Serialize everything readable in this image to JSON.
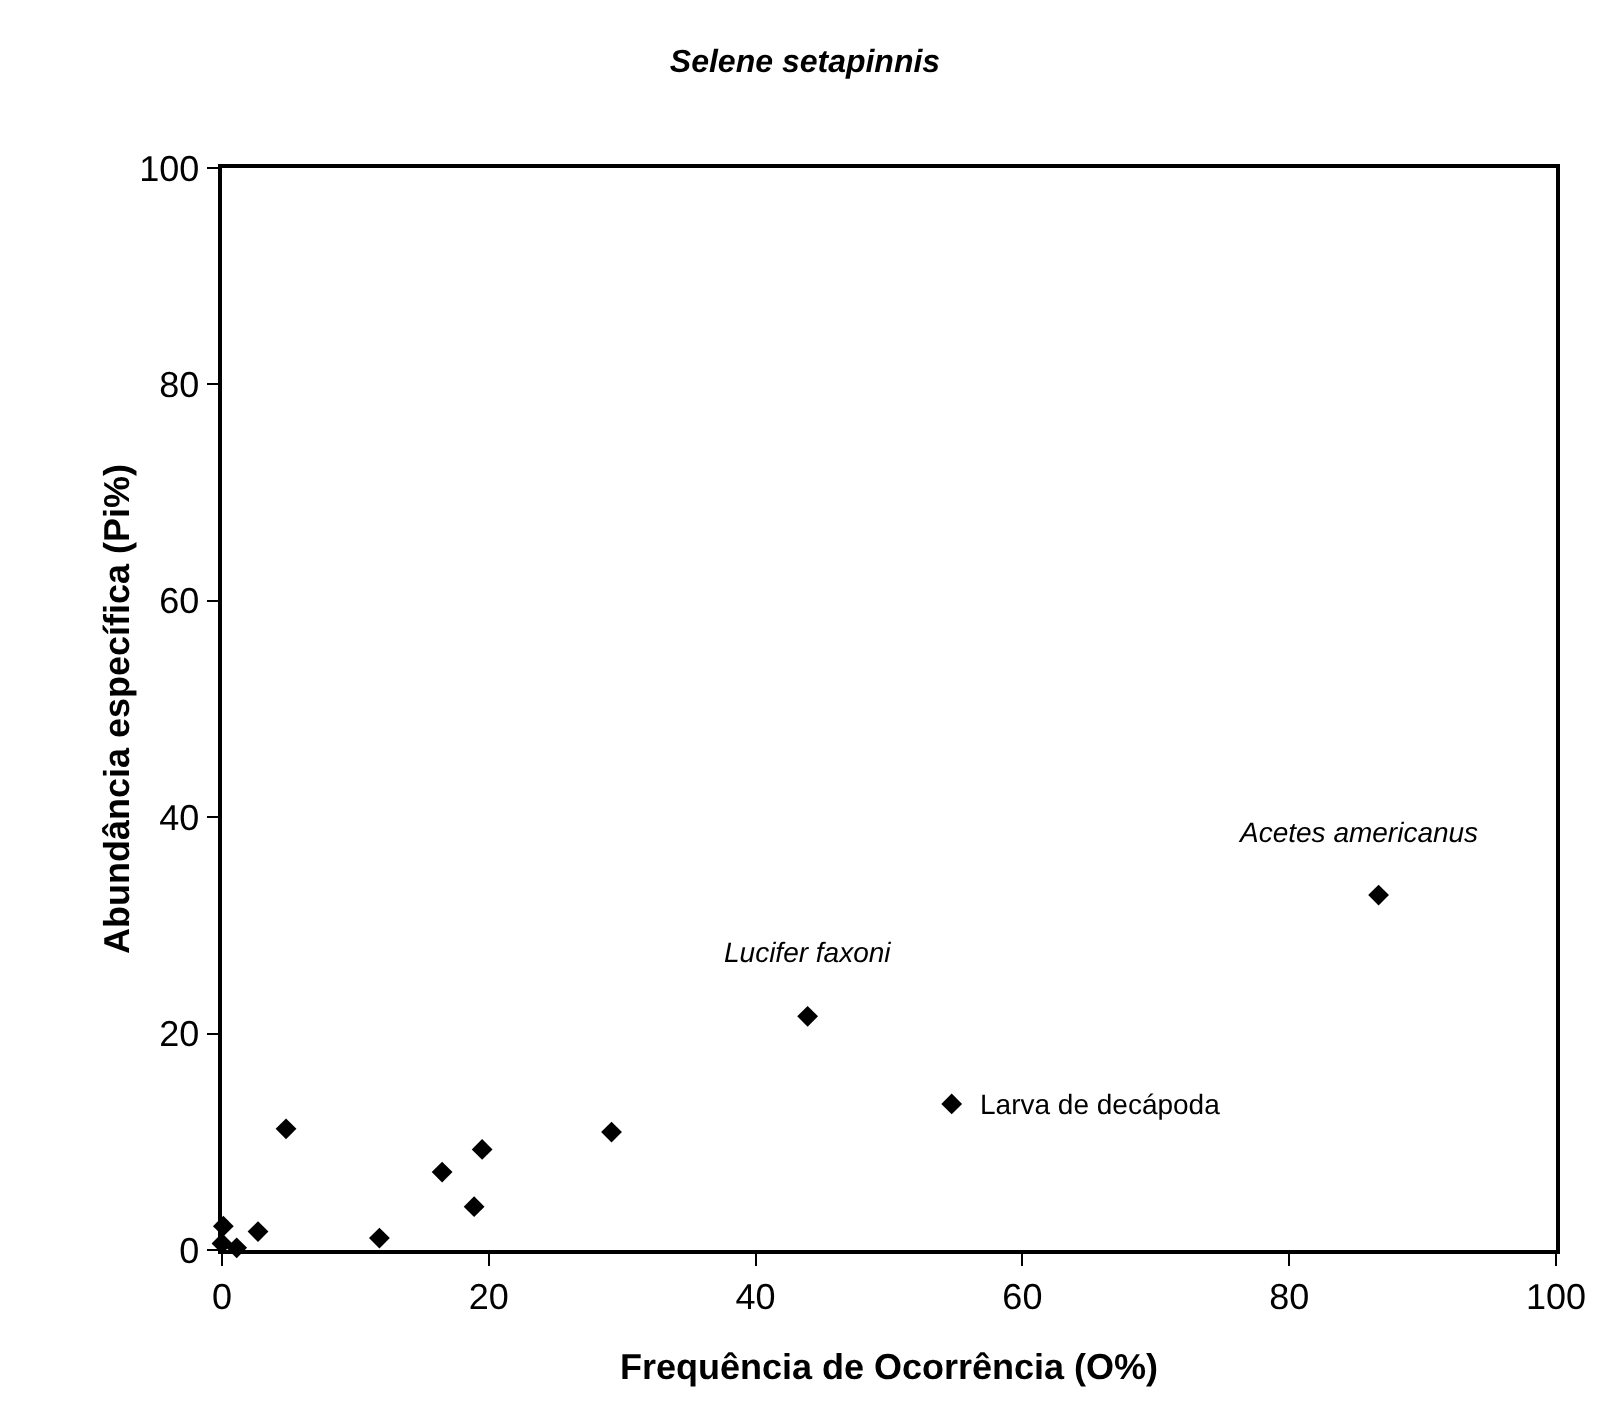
{
  "chart_data": {
    "type": "scatter",
    "title": "Selene setapinnis",
    "xlabel": "Frequência de Ocorrência (O%)",
    "ylabel": "Abundância específica (Pi%)",
    "x": [
      0.1,
      0,
      1.1,
      2.7,
      4.8,
      11.8,
      16.5,
      18.9,
      19.5,
      29.2,
      43.9,
      54.7,
      86.7
    ],
    "values": [
      2.2,
      0.6,
      0.2,
      1.7,
      11.2,
      1.1,
      7.2,
      4.0,
      9.3,
      10.9,
      21.6,
      13.5,
      32.8
    ],
    "color": "#000000",
    "marker": "diamond",
    "xlim": [
      0,
      100
    ],
    "ylim": [
      0,
      100
    ],
    "xticks": [
      0,
      20,
      40,
      60,
      80,
      100
    ],
    "yticks": [
      0,
      20,
      40,
      60,
      80,
      100
    ],
    "annotations": [
      {
        "text": "Lucifer faxoni",
        "x": 43.9,
        "y": 21.6
      },
      {
        "text": "Acetes americanus",
        "x": 86.7,
        "y": 32.8
      },
      {
        "text": "Larva de decápoda",
        "x": 54.7,
        "y": 13.5
      }
    ]
  }
}
